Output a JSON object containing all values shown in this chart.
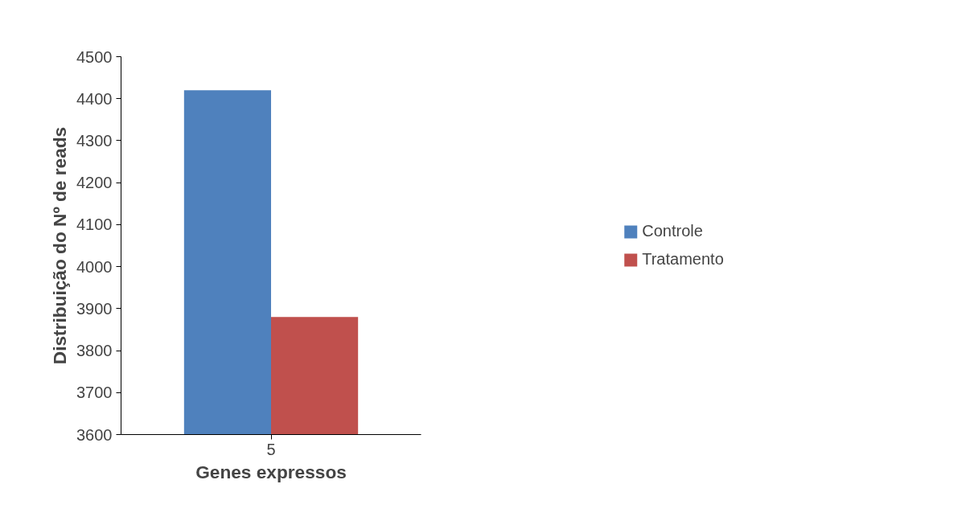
{
  "chart_data": {
    "type": "bar",
    "xlabel": "Genes expressos",
    "ylabel": "Distribuição do Nº de reads",
    "categories": [
      "5"
    ],
    "series": [
      {
        "name": "Controle",
        "color": "#4f81bd",
        "values": [
          4420
        ]
      },
      {
        "name": "Tratamento",
        "color": "#c0504d",
        "values": [
          3880
        ]
      }
    ],
    "ylim": [
      3600,
      4500
    ],
    "yticks": [
      3600,
      3700,
      3800,
      3900,
      4000,
      4100,
      4200,
      4300,
      4400,
      4500
    ],
    "grid": false,
    "legend": "right"
  }
}
